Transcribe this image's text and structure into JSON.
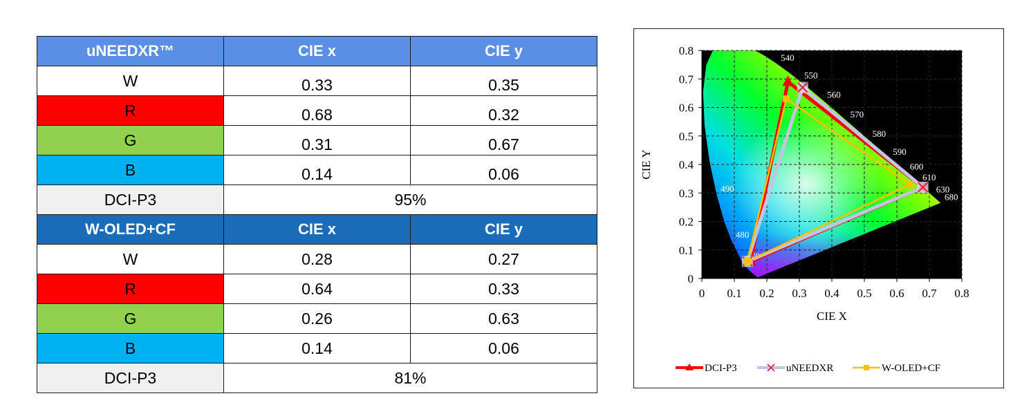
{
  "table": {
    "sections": [
      {
        "header": [
          "uNEEDXR™",
          "CIE x",
          "CIE y"
        ],
        "rows": [
          {
            "label": "W",
            "x": "0.33",
            "y": "0.35",
            "swatch": "#ffffff"
          },
          {
            "label": "R",
            "x": "0.68",
            "y": "0.32",
            "swatch": "#ff0000"
          },
          {
            "label": "G",
            "x": "0.31",
            "y": "0.67",
            "swatch": "#92d050"
          },
          {
            "label": "B",
            "x": "0.14",
            "y": "0.06",
            "swatch": "#00b0f0"
          }
        ],
        "summary": {
          "label": "DCI-P3",
          "value": "95%"
        },
        "header_color": "#5b8fe6"
      },
      {
        "header": [
          "W-OLED+CF",
          "CIE x",
          "CIE y"
        ],
        "rows": [
          {
            "label": "W",
            "x": "0.28",
            "y": "0.27",
            "swatch": "#ffffff"
          },
          {
            "label": "R",
            "x": "0.64",
            "y": "0.33",
            "swatch": "#ff0000"
          },
          {
            "label": "G",
            "x": "0.26",
            "y": "0.63",
            "swatch": "#92d050"
          },
          {
            "label": "B",
            "x": "0.14",
            "y": "0.06",
            "swatch": "#00b0f0"
          }
        ],
        "summary": {
          "label": "DCI-P3",
          "value": "81%"
        },
        "header_color": "#1a6bb8"
      }
    ]
  },
  "chart_data": {
    "type": "scatter",
    "xlabel": "CIE X",
    "ylabel": "CIE Y",
    "xlim": [
      0,
      0.8
    ],
    "ylim": [
      0,
      0.8
    ],
    "xticks": [
      "0",
      "0.1",
      "0.2",
      "0.3",
      "0.4",
      "0.5",
      "0.6",
      "0.7",
      "0.8"
    ],
    "yticks": [
      "0",
      "0.1",
      "0.2",
      "0.3",
      "0.4",
      "0.5",
      "0.6",
      "0.7",
      "0.8"
    ],
    "background": "#000000",
    "grid": true,
    "spectral_locus_labels": [
      {
        "text": "470",
        "x": 0.124,
        "y": 0.058
      },
      {
        "text": "480",
        "x": 0.091,
        "y": 0.133
      },
      {
        "text": "490",
        "x": 0.045,
        "y": 0.295
      },
      {
        "text": "540",
        "x": 0.23,
        "y": 0.754
      },
      {
        "text": "550",
        "x": 0.302,
        "y": 0.692
      },
      {
        "text": "560",
        "x": 0.373,
        "y": 0.624
      },
      {
        "text": "570",
        "x": 0.444,
        "y": 0.555
      },
      {
        "text": "580",
        "x": 0.512,
        "y": 0.487
      },
      {
        "text": "590",
        "x": 0.575,
        "y": 0.424
      },
      {
        "text": "600",
        "x": 0.627,
        "y": 0.372
      },
      {
        "text": "610",
        "x": 0.666,
        "y": 0.334
      },
      {
        "text": "630",
        "x": 0.708,
        "y": 0.292
      },
      {
        "text": "680",
        "x": 0.734,
        "y": 0.265
      }
    ],
    "series": [
      {
        "name": "DCI-P3",
        "color": "#ff0000",
        "marker": "triangle",
        "points": [
          {
            "x": 0.68,
            "y": 0.32
          },
          {
            "x": 0.265,
            "y": 0.69
          },
          {
            "x": 0.15,
            "y": 0.06
          }
        ]
      },
      {
        "name": "uNEEDXR",
        "color": "#c0c6e0",
        "marker": "x",
        "points": [
          {
            "x": 0.68,
            "y": 0.32
          },
          {
            "x": 0.31,
            "y": 0.67
          },
          {
            "x": 0.14,
            "y": 0.06
          }
        ]
      },
      {
        "name": "W-OLED+CF",
        "color": "#ffc000",
        "marker": "square",
        "points": [
          {
            "x": 0.64,
            "y": 0.33
          },
          {
            "x": 0.26,
            "y": 0.63
          },
          {
            "x": 0.14,
            "y": 0.06
          }
        ]
      }
    ],
    "legend": {
      "position": "bottom",
      "items": [
        "DCI-P3",
        "uNEEDXR",
        "W-OLED+CF"
      ]
    }
  }
}
